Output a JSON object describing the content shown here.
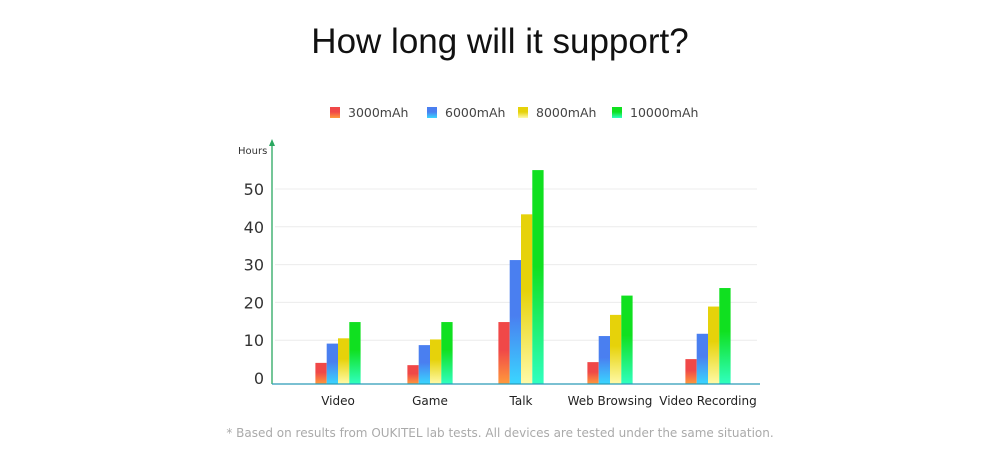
{
  "chart_data": {
    "type": "bar",
    "title": "How long will it support?",
    "ylabel": "Hours",
    "xlabel": "",
    "ylim": [
      0,
      55
    ],
    "yticks": [
      0,
      10,
      20,
      30,
      40,
      50
    ],
    "grid": true,
    "legend_position": "top-center",
    "categories": [
      "Video",
      "Game",
      "Talk",
      "Web Browsing",
      "Video Recording"
    ],
    "series": [
      {
        "name": "3000mAh",
        "color": "#f04848",
        "color2": "#ff9a3c",
        "values": [
          4.0,
          3.4,
          14.8,
          4.2,
          5.0
        ]
      },
      {
        "name": "6000mAh",
        "color": "#4a7ff0",
        "color2": "#3ad6ff",
        "values": [
          9.1,
          8.7,
          31.2,
          11.1,
          11.7
        ]
      },
      {
        "name": "8000mAh",
        "color": "#e6d20a",
        "color2": "#fffaa8",
        "values": [
          10.5,
          10.2,
          43.3,
          16.7,
          18.9
        ]
      },
      {
        "name": "10000mAh",
        "color": "#10e020",
        "color2": "#30ffc0",
        "values": [
          14.8,
          14.8,
          55.0,
          21.8,
          23.8
        ]
      }
    ],
    "footnote": "* Based on results from OUKITEL lab tests. All devices are tested under the same situation."
  }
}
